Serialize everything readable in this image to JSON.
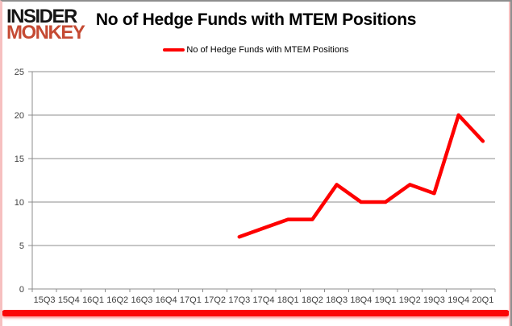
{
  "logo": {
    "line1": "INSIDER",
    "line2": "MONKEY"
  },
  "title": "No of Hedge Funds with MTEM Positions",
  "legend": {
    "label": "No of Hedge Funds with MTEM Positions"
  },
  "colors": {
    "series_line": "#fe0000",
    "grid": "#8c8c8c",
    "axis": "#8c8c8c",
    "tick_label": "#404040",
    "logo_black": "#161616",
    "logo_red": "#c54a33",
    "frame_gray": "#8e8e8e",
    "frame_pink": "#f6c0c0",
    "bottom_glow": "#fb0505"
  },
  "chart_data": {
    "type": "line",
    "title": "No of Hedge Funds with MTEM Positions",
    "categories": [
      "15Q3",
      "15Q4",
      "16Q1",
      "16Q2",
      "16Q3",
      "16Q4",
      "17Q1",
      "17Q2",
      "17Q3",
      "17Q4",
      "18Q1",
      "18Q2",
      "18Q3",
      "18Q4",
      "19Q1",
      "19Q2",
      "19Q3",
      "19Q4",
      "20Q1"
    ],
    "series": [
      {
        "name": "No of Hedge Funds with MTEM Positions",
        "color": "#fe0000",
        "values": [
          null,
          null,
          null,
          null,
          null,
          null,
          null,
          null,
          6,
          7,
          8,
          8,
          12,
          10,
          10,
          12,
          11,
          20,
          17
        ]
      }
    ],
    "ylim": [
      0,
      25
    ],
    "yticks": [
      0,
      5,
      10,
      15,
      20,
      25
    ],
    "xlabel": "",
    "ylabel": "",
    "grid": "horizontal",
    "legend_position": "top-center"
  }
}
